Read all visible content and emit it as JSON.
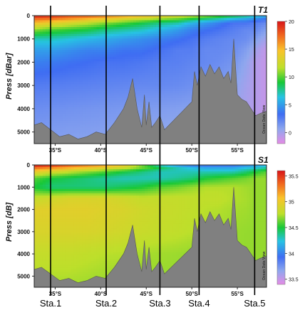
{
  "chart_data": [
    {
      "type": "heatmap",
      "panel_label": "T1",
      "ylabel": "Press [dBar]",
      "y_ticks": [
        "0",
        "1000",
        "2000",
        "3000",
        "4000",
        "5000"
      ],
      "ylim": [
        0,
        5500
      ],
      "x_ticks": [
        "35°S",
        "40°S",
        "45°S",
        "50°S",
        "55°S"
      ],
      "xlim_lat_south": [
        32.7,
        58.2
      ],
      "colorbar": {
        "ticks": [
          "20",
          "15",
          "10",
          "5",
          "0"
        ],
        "range": [
          -2,
          20
        ]
      },
      "watermark": "Ocean Data View",
      "x_lat": [
        32.7,
        34.5,
        36.5,
        38.5,
        40.5,
        42.5,
        44.5,
        46.5,
        48.5,
        50.0,
        51.5,
        53.0,
        54.5,
        56.0,
        57.0,
        58.2
      ],
      "depth": [
        0,
        100,
        300,
        600,
        1000,
        1500,
        2000,
        3000,
        4000,
        5500
      ],
      "values": [
        [
          20,
          19,
          18,
          18,
          17,
          16,
          15,
          14,
          13,
          12,
          11,
          10,
          9,
          8,
          7,
          6
        ],
        [
          18,
          18,
          17,
          16,
          15,
          14,
          13,
          12,
          11,
          10,
          9,
          8,
          7,
          6,
          5,
          4
        ],
        [
          15,
          14,
          13,
          12,
          11,
          10,
          9,
          8,
          7.5,
          6,
          5,
          4,
          3,
          3,
          2.5,
          2
        ],
        [
          11,
          10,
          9.5,
          9,
          8,
          7.5,
          7,
          6,
          5,
          4,
          3.5,
          3,
          2.5,
          2,
          2,
          1
        ],
        [
          7,
          7,
          6.5,
          6,
          5.5,
          5,
          4.5,
          4,
          3.5,
          3,
          2.5,
          2.2,
          2,
          1.8,
          1,
          0
        ],
        [
          5,
          5,
          4.5,
          4,
          4,
          3.5,
          3.5,
          3,
          2.5,
          2.5,
          2,
          2,
          1.8,
          1,
          0,
          -1
        ],
        [
          4,
          3.8,
          3.5,
          3.3,
          3,
          3,
          2.8,
          2.5,
          2.4,
          2.2,
          2,
          1.8,
          1.5,
          0.5,
          -0.5,
          -1
        ],
        [
          2.6,
          2.5,
          2.4,
          2.3,
          2.2,
          2.1,
          2,
          2,
          1.9,
          1.7,
          1.5,
          1.2,
          0.8,
          0,
          -0.5,
          -1
        ],
        [
          1.8,
          1.7,
          1.6,
          1.5,
          1.4,
          1.3,
          1.2,
          1.1,
          1,
          0.9,
          0.8,
          0.6,
          0.3,
          -0.2,
          -0.5,
          -1
        ],
        [
          1,
          0.9,
          0.8,
          0.8,
          0.7,
          0.6,
          0.5,
          0.4,
          0.3,
          0.2,
          0.1,
          0,
          -0.2,
          -0.5,
          -0.8,
          -1
        ]
      ]
    },
    {
      "type": "heatmap",
      "panel_label": "S1",
      "ylabel": "Press [dB]",
      "y_ticks": [
        "0",
        "1000",
        "2000",
        "3000",
        "4000",
        "5000"
      ],
      "ylim": [
        0,
        5500
      ],
      "x_ticks": [
        "35°S",
        "40°S",
        "45°S",
        "50°S",
        "55°S"
      ],
      "xlim_lat_south": [
        32.7,
        58.2
      ],
      "colorbar": {
        "ticks": [
          "35.5",
          "35",
          "34.5",
          "34",
          "33.5"
        ],
        "range": [
          33.4,
          35.6
        ]
      },
      "watermark": "Ocean Data View",
      "x_lat": [
        32.7,
        34.5,
        36.5,
        38.5,
        40.5,
        42.5,
        44.5,
        46.5,
        48.5,
        50.0,
        51.5,
        53.0,
        54.5,
        56.0,
        57.0,
        58.2
      ],
      "depth": [
        0,
        100,
        300,
        600,
        1000,
        1500,
        2000,
        3000,
        4000,
        5500
      ],
      "values": [
        [
          35.6,
          35.55,
          35.4,
          35.3,
          35.2,
          35.0,
          34.6,
          34.2,
          34.0,
          33.9,
          33.9,
          33.9,
          33.9,
          34.0,
          34.1,
          34.2
        ],
        [
          35.4,
          35.3,
          35.2,
          35.1,
          35.0,
          34.9,
          34.7,
          34.5,
          34.3,
          34.2,
          34.1,
          34.1,
          34.1,
          34.2,
          34.2,
          34.3
        ],
        [
          35.0,
          34.9,
          34.8,
          34.7,
          34.6,
          34.5,
          34.4,
          34.3,
          34.3,
          34.3,
          34.3,
          34.3,
          34.3,
          34.4,
          34.5,
          34.6
        ],
        [
          34.6,
          34.5,
          34.45,
          34.4,
          34.35,
          34.3,
          34.3,
          34.3,
          34.35,
          34.4,
          34.5,
          34.55,
          34.6,
          34.65,
          34.7,
          34.7
        ],
        [
          34.5,
          34.4,
          34.4,
          34.4,
          34.4,
          34.45,
          34.5,
          34.6,
          34.65,
          34.7,
          34.75,
          34.75,
          34.75,
          34.72,
          34.7,
          34.7
        ],
        [
          34.8,
          34.85,
          34.9,
          34.9,
          34.9,
          34.85,
          34.8,
          34.8,
          34.8,
          34.78,
          34.78,
          34.78,
          34.75,
          34.73,
          34.7,
          34.7
        ],
        [
          34.95,
          34.95,
          34.95,
          34.95,
          34.92,
          34.9,
          34.85,
          34.82,
          34.8,
          34.78,
          34.76,
          34.75,
          34.73,
          34.72,
          34.7,
          34.7
        ],
        [
          34.9,
          34.9,
          34.9,
          34.9,
          34.88,
          34.85,
          34.82,
          34.8,
          34.78,
          34.76,
          34.74,
          34.72,
          34.71,
          34.7,
          34.7,
          34.7
        ],
        [
          34.8,
          34.8,
          34.8,
          34.78,
          34.76,
          34.75,
          34.73,
          34.72,
          34.71,
          34.7,
          34.7,
          34.7,
          34.7,
          34.7,
          34.7,
          34.7
        ],
        [
          34.72,
          34.72,
          34.72,
          34.71,
          34.7,
          34.7,
          34.7,
          34.7,
          34.7,
          34.7,
          34.7,
          34.7,
          34.7,
          34.7,
          34.7,
          34.7
        ]
      ]
    }
  ],
  "stations": [
    {
      "label": "Sta.1",
      "lat": 34.5
    },
    {
      "label": "Sta.2",
      "lat": 40.6
    },
    {
      "label": "Sta.3",
      "lat": 46.5
    },
    {
      "label": "Sta.4",
      "lat": 50.8
    },
    {
      "label": "Sta.5",
      "lat": 56.9
    }
  ],
  "bathymetry": {
    "lat": [
      32.7,
      33.5,
      34.5,
      35.5,
      36.5,
      37.5,
      38.5,
      39.5,
      40.5,
      41.5,
      42.5,
      43.0,
      43.5,
      44.0,
      44.5,
      44.8,
      45.0,
      45.3,
      45.6,
      46.0,
      46.5,
      47.0,
      47.5,
      48.0,
      48.5,
      49.0,
      49.5,
      50.0,
      50.3,
      50.6,
      51.0,
      51.5,
      52.0,
      52.5,
      53.0,
      53.5,
      54.0,
      54.3,
      54.6,
      55.0,
      55.5,
      56.0,
      56.5,
      57.0,
      57.5,
      58.2
    ],
    "depth": [
      4700,
      4600,
      4900,
      5200,
      5100,
      5300,
      5200,
      5000,
      5100,
      4600,
      4000,
      3500,
      2700,
      4000,
      4800,
      3400,
      4700,
      3700,
      4800,
      4600,
      4300,
      4900,
      4700,
      4500,
      4300,
      4100,
      3900,
      3700,
      2400,
      3000,
      2200,
      2600,
      2100,
      2500,
      2200,
      2700,
      2400,
      2900,
      1000,
      3400,
      3600,
      3700,
      4000,
      4300,
      4200,
      4100
    ]
  }
}
